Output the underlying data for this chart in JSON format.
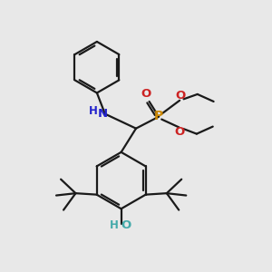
{
  "background_color": "#e8e8e8",
  "bond_color": "#1a1a1a",
  "N_color": "#2222cc",
  "O_color": "#cc2222",
  "P_color": "#cc8800",
  "OH_color": "#44aaaa",
  "lw": 1.6,
  "figsize": [
    3.0,
    3.0
  ],
  "dpi": 100,
  "xlim": [
    0,
    10
  ],
  "ylim": [
    0,
    10
  ]
}
